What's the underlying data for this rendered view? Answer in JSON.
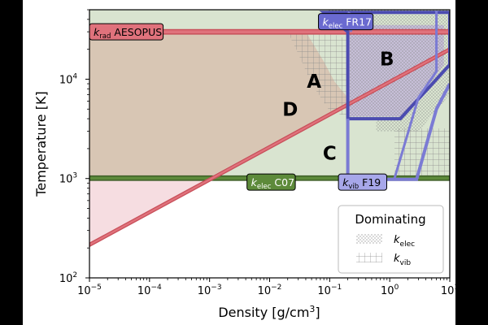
{
  "chart_data": {
    "type": "area",
    "x_scale": "log",
    "y_scale": "log",
    "xlabel_main": "Density [g/cm",
    "xlabel_sup": "3",
    "xlabel_end": "]",
    "ylabel": "Temperature [K]",
    "xlim": [
      1e-05,
      10
    ],
    "ylim": [
      100,
      50000
    ],
    "x_ticks": [
      {
        "value": 1e-05,
        "base": "10",
        "exp": "−5"
      },
      {
        "value": 0.0001,
        "base": "10",
        "exp": "−4"
      },
      {
        "value": 0.001,
        "base": "10",
        "exp": "−3"
      },
      {
        "value": 0.01,
        "base": "10",
        "exp": "−2"
      },
      {
        "value": 0.1,
        "base": "10",
        "exp": "−1"
      },
      {
        "value": 1,
        "base": "10",
        "exp": "0"
      },
      {
        "value": 10,
        "base": "10",
        "exp": "1"
      }
    ],
    "y_ticks": [
      {
        "value": 100,
        "base": "10",
        "exp": "2"
      },
      {
        "value": 1000,
        "base": "10",
        "exp": "3"
      },
      {
        "value": 10000,
        "base": "10",
        "exp": "4"
      }
    ],
    "regions": [
      {
        "label": "A",
        "x": 0.055,
        "y": 9500
      },
      {
        "label": "B",
        "x": 0.9,
        "y": 16000
      },
      {
        "label": "C",
        "x": 0.1,
        "y": 1800
      },
      {
        "label": "D",
        "x": 0.022,
        "y": 5000
      }
    ],
    "boundaries": [
      {
        "name_base": "k",
        "name_sub": "rad",
        "name_rest": "AESOPUS",
        "label_x": 1e-05,
        "label_y": 30000,
        "color": "#c8505a",
        "fill": "#e0727c"
      },
      {
        "name_base": "k",
        "name_sub": "elec",
        "name_rest": "FR17",
        "label_x": 0.065,
        "label_y": 38000,
        "color": "#4b4bb0",
        "fill": "#6a6ad0"
      },
      {
        "name_base": "k",
        "name_sub": "elec",
        "name_rest": "C07",
        "label_x": 0.0042,
        "label_y": 920,
        "color": "#3d5e26",
        "fill": "#5d8a3a"
      },
      {
        "name_base": "k",
        "name_sub": "vib",
        "name_rest": "F19",
        "label_x": 0.14,
        "label_y": 920,
        "color": "#7b7bd4",
        "fill": "#a7a7ea"
      }
    ],
    "diagonal_line": {
      "color": "#c8505a",
      "points": [
        [
          1e-05,
          215
        ],
        [
          10,
          20000
        ]
      ]
    },
    "legend": {
      "title": "Dominating",
      "placement": "lower-right",
      "entries": [
        {
          "name_base": "k",
          "name_sub": "elec",
          "hatch": "dots"
        },
        {
          "name_base": "k",
          "name_sub": "vib",
          "hatch": "grid"
        }
      ]
    },
    "colors": {
      "region_d": "#d8c6b4",
      "region_c": "#d9e4d0",
      "region_b": "#c4bad8",
      "region_pink": "#f6dde1",
      "grid": "#b8c6b0"
    }
  }
}
